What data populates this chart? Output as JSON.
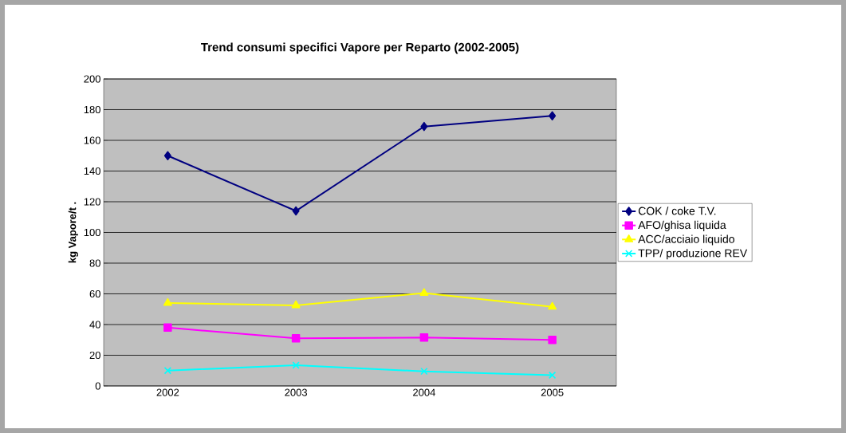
{
  "chart_data": {
    "type": "line",
    "title": "Trend consumi specifici Vapore per Reparto (2002-2005)",
    "ylabel": "kg Vapore/t     .",
    "categories": [
      "2002",
      "2003",
      "2004",
      "2005"
    ],
    "series": [
      {
        "name": "COK / coke T.V.",
        "color": "#000080",
        "marker": "diamond",
        "values": [
          150,
          114,
          169,
          176
        ]
      },
      {
        "name": "AFO/ghisa liquida",
        "color": "#ff00ff",
        "marker": "square",
        "values": [
          38,
          31,
          31.5,
          30
        ]
      },
      {
        "name": "ACC/acciaio liquido",
        "color": "#ffff00",
        "marker": "triangle",
        "values": [
          54,
          52.5,
          60.5,
          51.5
        ]
      },
      {
        "name": "TPP/ produzione REV",
        "color": "#00ffff",
        "marker": "cross",
        "values": [
          10,
          13.5,
          9.5,
          7
        ]
      }
    ],
    "ylim": [
      0,
      200
    ],
    "yticks": [
      0,
      20,
      40,
      60,
      80,
      100,
      120,
      140,
      160,
      180,
      200
    ],
    "grid": "y",
    "legend": "right",
    "line_style": "solid"
  }
}
